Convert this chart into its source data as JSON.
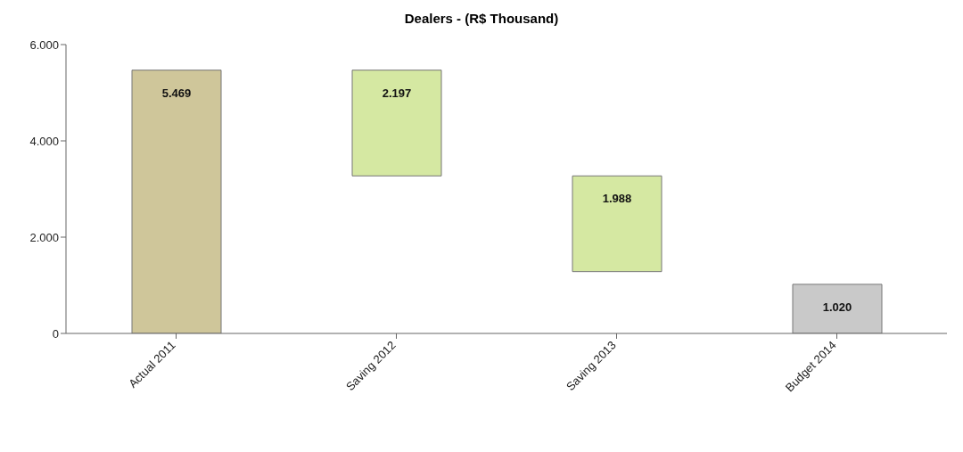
{
  "chart_data": {
    "type": "bar",
    "title": "Dealers - (R$ Thousand)",
    "categories": [
      "Actual 2011",
      "Saving 2012",
      "Saving 2013",
      "Budget 2014"
    ],
    "values": [
      5469,
      2197,
      1988,
      1020
    ],
    "base": [
      0,
      3272,
      1284,
      0
    ],
    "colors": [
      "#cfc69a",
      "#d5e8a2",
      "#d5e8a2",
      "#c9c9c9"
    ],
    "value_labels": [
      "5.469",
      "2.197",
      "1.988",
      "1.020"
    ],
    "ylim": [
      0,
      6000
    ],
    "yticks": [
      {
        "value": 0,
        "label": "0"
      },
      {
        "value": 2000,
        "label": "2.000"
      },
      {
        "value": 4000,
        "label": "4.000"
      },
      {
        "value": 6000,
        "label": "6.000"
      }
    ]
  }
}
